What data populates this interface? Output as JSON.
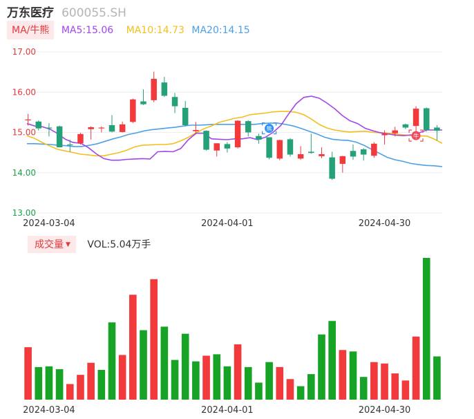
{
  "header": {
    "name": "万东医疗",
    "code": "600055.SH"
  },
  "ma_legend": {
    "tag": "MA/牛熊",
    "ma5": "MA5:15.06",
    "ma10": "MA10:14.73",
    "ma20": "MA20:14.15"
  },
  "volume_legend": {
    "tag": "成交量",
    "arrow": "▼",
    "vol": "VOL:5.04万手"
  },
  "markers": {
    "bull": "牛",
    "bear": "熊"
  },
  "colors": {
    "up": "#f2393b",
    "down": "#24a178",
    "vol_down": "#16a326",
    "ma5": "#a245ec",
    "ma10": "#f5be1d",
    "ma20": "#4aa0e8",
    "grid": "#eeeeee"
  },
  "chart_data": [
    {
      "type": "candlestick",
      "ylim": [
        13.0,
        17.0
      ],
      "y_ticks": [
        "17.00",
        "16.00",
        "15.00",
        "14.00",
        "13.00"
      ],
      "x_ticks": [
        {
          "index": 2,
          "label": "2024-03-04"
        },
        {
          "index": 19,
          "label": "2024-04-01"
        },
        {
          "index": 34,
          "label": "2024-04-30"
        }
      ],
      "candles": [
        {
          "o": 15.3,
          "c": 15.32,
          "h": 15.46,
          "l": 15.17
        },
        {
          "o": 15.27,
          "c": 15.1,
          "h": 15.3,
          "l": 15.05
        },
        {
          "o": 15.12,
          "c": 15.1,
          "h": 15.23,
          "l": 14.9
        },
        {
          "o": 15.15,
          "c": 14.63,
          "h": 15.17,
          "l": 14.63
        },
        {
          "o": 14.7,
          "c": 14.69,
          "h": 14.82,
          "l": 14.52
        },
        {
          "o": 14.73,
          "c": 14.96,
          "h": 14.99,
          "l": 14.7
        },
        {
          "o": 15.08,
          "c": 15.13,
          "h": 15.15,
          "l": 14.82
        },
        {
          "o": 15.12,
          "c": 15.12,
          "h": 15.15,
          "l": 15.0
        },
        {
          "o": 15.18,
          "c": 15.02,
          "h": 15.43,
          "l": 15.0
        },
        {
          "o": 15.01,
          "c": 15.2,
          "h": 15.27,
          "l": 15.0
        },
        {
          "o": 15.26,
          "c": 15.82,
          "h": 15.84,
          "l": 15.23
        },
        {
          "o": 15.77,
          "c": 15.7,
          "h": 16.07,
          "l": 15.68
        },
        {
          "o": 15.8,
          "c": 16.33,
          "h": 16.51,
          "l": 15.75
        },
        {
          "o": 16.24,
          "c": 15.91,
          "h": 16.38,
          "l": 15.88
        },
        {
          "o": 15.88,
          "c": 15.65,
          "h": 15.98,
          "l": 15.48
        },
        {
          "o": 15.61,
          "c": 15.18,
          "h": 15.78,
          "l": 15.15
        },
        {
          "o": 15.03,
          "c": 15.06,
          "h": 15.26,
          "l": 14.96
        },
        {
          "o": 15.04,
          "c": 14.57,
          "h": 15.05,
          "l": 14.55
        },
        {
          "o": 14.55,
          "c": 14.73,
          "h": 14.73,
          "l": 14.4
        },
        {
          "o": 14.71,
          "c": 14.6,
          "h": 14.76,
          "l": 14.5
        },
        {
          "o": 14.63,
          "c": 15.29,
          "h": 15.3,
          "l": 14.6
        },
        {
          "o": 15.28,
          "c": 15.0,
          "h": 15.3,
          "l": 14.9
        },
        {
          "o": 14.91,
          "c": 14.82,
          "h": 14.97,
          "l": 14.72
        },
        {
          "o": 14.88,
          "c": 14.37,
          "h": 14.88,
          "l": 14.33
        },
        {
          "o": 14.35,
          "c": 14.81,
          "h": 14.82,
          "l": 14.31
        },
        {
          "o": 14.83,
          "c": 14.45,
          "h": 14.86,
          "l": 14.4
        },
        {
          "o": 14.35,
          "c": 14.46,
          "h": 14.66,
          "l": 14.32
        },
        {
          "o": 14.52,
          "c": 14.49,
          "h": 14.97,
          "l": 14.47
        },
        {
          "o": 14.41,
          "c": 14.46,
          "h": 14.63,
          "l": 14.36
        },
        {
          "o": 14.38,
          "c": 13.85,
          "h": 14.52,
          "l": 13.82
        },
        {
          "o": 14.22,
          "c": 14.41,
          "h": 14.42,
          "l": 14.0
        },
        {
          "o": 14.54,
          "c": 14.4,
          "h": 14.7,
          "l": 14.32
        },
        {
          "o": 14.58,
          "c": 14.45,
          "h": 14.61,
          "l": 14.3
        },
        {
          "o": 14.42,
          "c": 14.72,
          "h": 14.76,
          "l": 14.37
        },
        {
          "o": 14.93,
          "c": 14.97,
          "h": 15.05,
          "l": 14.7
        },
        {
          "o": 14.98,
          "c": 15.05,
          "h": 15.14,
          "l": 14.9
        },
        {
          "o": 15.2,
          "c": 15.12,
          "h": 15.22,
          "l": 15.08
        },
        {
          "o": 15.16,
          "c": 15.59,
          "h": 15.65,
          "l": 14.98
        },
        {
          "o": 15.6,
          "c": 15.06,
          "h": 15.62,
          "l": 15.02
        },
        {
          "o": 15.12,
          "c": 15.04,
          "h": 15.18,
          "l": 14.8
        }
      ],
      "ma5": [
        15.22,
        15.16,
        15.14,
        15.08,
        14.97,
        14.83,
        14.75,
        14.73,
        14.62,
        14.47,
        14.35,
        14.31,
        14.31,
        14.33,
        14.34,
        14.35,
        14.34,
        14.52,
        14.53,
        14.52,
        14.6,
        14.82,
        14.98,
        14.98,
        14.84,
        14.83,
        14.82,
        14.84,
        14.84,
        14.87,
        14.82,
        14.88,
        15.0,
        15.17,
        15.45,
        15.71,
        15.87,
        15.9,
        15.85,
        15.73,
        15.59,
        15.42,
        15.29,
        15.22,
        15.1,
        15.04,
        14.99,
        14.96,
        14.93,
        14.92,
        14.94,
        14.99,
        15.06,
        15.06,
        15.06
      ],
      "ma10": [
        14.92,
        14.85,
        14.75,
        14.66,
        14.58,
        14.54,
        14.5,
        14.46,
        14.44,
        14.42,
        14.42,
        14.46,
        14.5,
        14.56,
        14.64,
        14.68,
        14.69,
        14.7,
        14.7,
        14.72,
        14.79,
        14.88,
        14.99,
        15.09,
        15.16,
        15.25,
        15.3,
        15.35,
        15.38,
        15.44,
        15.46,
        15.48,
        15.51,
        15.52,
        15.52,
        15.5,
        15.44,
        15.33,
        15.2,
        15.11,
        15.06,
        15.03,
        15.01,
        15.02,
        15.03,
        15.0,
        14.99,
        14.98,
        14.96,
        14.94,
        14.92,
        14.91,
        14.91,
        14.83,
        14.73
      ],
      "ma20": [
        14.72,
        14.72,
        14.71,
        14.7,
        14.68,
        14.67,
        14.65,
        14.65,
        14.68,
        14.72,
        14.78,
        14.84,
        14.89,
        14.95,
        14.99,
        15.04,
        15.07,
        15.09,
        15.11,
        15.13,
        15.16,
        15.18,
        15.18,
        15.19,
        15.2,
        15.2,
        15.2,
        15.2,
        15.2,
        15.2,
        15.22,
        15.23,
        15.23,
        15.2,
        15.16,
        15.1,
        15.03,
        14.96,
        14.88,
        14.83,
        14.81,
        14.8,
        14.76,
        14.68,
        14.58,
        14.48,
        14.38,
        14.32,
        14.28,
        14.23,
        14.2,
        14.18,
        14.17,
        14.15
      ]
    },
    {
      "type": "bar",
      "title": "成交量",
      "x_ticks": [
        {
          "index": 2,
          "label": "2024-03-04"
        },
        {
          "index": 19,
          "label": "2024-04-01"
        },
        {
          "index": 34,
          "label": "2024-04-30"
        }
      ],
      "volumes": [
        3.7,
        2.3,
        2.35,
        2.15,
        1.1,
        1.75,
        2.6,
        2.1,
        5.45,
        3.15,
        7.4,
        4.9,
        8.5,
        5.15,
        2.8,
        4.65,
        2.7,
        3.1,
        3.2,
        2.35,
        3.9,
        2.3,
        1.2,
        2.65,
        2.3,
        1.45,
        0.95,
        1.8,
        4.6,
        5.55,
        3.5,
        3.4,
        1.6,
        2.65,
        2.55,
        1.85,
        1.35,
        4.45,
        10.0,
        3.05
      ],
      "up": [
        true,
        false,
        false,
        false,
        true,
        true,
        true,
        false,
        false,
        true,
        true,
        false,
        true,
        false,
        false,
        false,
        false,
        true,
        false,
        false,
        true,
        false,
        false,
        false,
        true,
        true,
        false,
        false,
        false,
        false,
        true,
        false,
        false,
        true,
        true,
        true,
        true,
        true,
        false,
        false
      ]
    }
  ]
}
